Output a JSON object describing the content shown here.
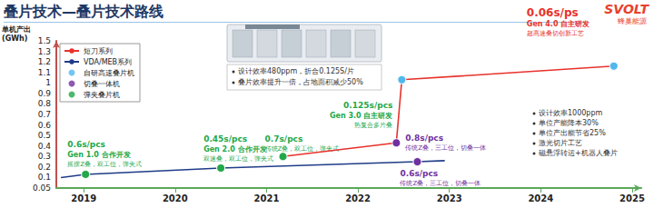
{
  "chart_data": {
    "type": "line",
    "title": "叠片技术—叠片技术路线",
    "y_label": "单机产出\n(GWh)",
    "xlim": [
      2018.7,
      2025.1
    ],
    "xticks": [
      2019,
      2020,
      2021,
      2022,
      2023,
      2024,
      2025
    ],
    "ylim": [
      0.05,
      1.5
    ],
    "yticks": [
      0.05,
      0.1,
      0.2,
      0.3,
      0.4,
      0.5,
      0.6,
      0.7,
      0.8,
      0.9,
      1,
      1.1,
      1.2,
      1.3,
      1.5
    ],
    "grid": false,
    "legend": "upper left",
    "machines": [
      {
        "name": "自研高速叠片机",
        "color": "#4fb8ee"
      },
      {
        "name": "切叠一体机",
        "color": "#7030a0"
      },
      {
        "name": "弹夹叠片机",
        "color": "#22a84a"
      }
    ],
    "series": [
      {
        "name": "短刀系列",
        "color": "#e8322b",
        "x": [
          2021.18,
          2022.42,
          2022.48,
          2024.8
        ],
        "values": [
          0.3,
          0.43,
          1.03,
          1.16
        ],
        "machine": [
          "弹夹叠片机",
          "切叠一体机",
          "自研高速叠片机",
          "自研高速叠片机"
        ],
        "annotations": [
          [
            "0.7s/pcs",
            "传统Z叠，双工位，弹夹式"
          ],
          [
            "0.8s/pcs",
            "传统Z叠，三工位，切叠一体"
          ],
          [
            "0.125s/pcs",
            "Gen 3.0 自主研发",
            "热复合多片叠"
          ],
          [
            "0.06s/ps",
            "Gen 4.0 自主研发",
            "超高速叠切创新工艺"
          ]
        ]
      },
      {
        "name": "VDA/MEB系列",
        "color": "#1f3c88",
        "x": [
          2018.75,
          2019.02,
          2020.5,
          2022.65,
          2022.95
        ],
        "values": [
          0.1,
          0.13,
          0.19,
          0.25,
          0.26
        ],
        "machine": [
          null,
          "弹夹叠片机",
          "弹夹叠片机",
          "切叠一体机",
          null
        ],
        "annotations": [
          null,
          [
            "0.6s/pcs",
            "Gen 1.0 合作开发",
            "摇摆Z叠，双工位，弹夹式"
          ],
          [
            "0.45s/pcs",
            "Gen 2.0 合作开发",
            "双速叠，双工位，弹夹式"
          ],
          [
            "0.6s/pcs",
            "传统Z叠，三工位，切叠一体"
          ],
          null
        ]
      }
    ],
    "notes": {
      "machine_box": [
        "设计效率480ppm，折合0.125S/片",
        "叠片效率提升一倍，占地面积减少50%"
      ],
      "gen4": [
        "设计效率1000ppm",
        "单位产能降本30%",
        "单位产出能节省25%",
        "激光切片工艺",
        "磁悬浮转运+机器人叠片"
      ]
    },
    "logo": {
      "name": "SVOLT",
      "subtitle": "蜂巢能源"
    }
  }
}
